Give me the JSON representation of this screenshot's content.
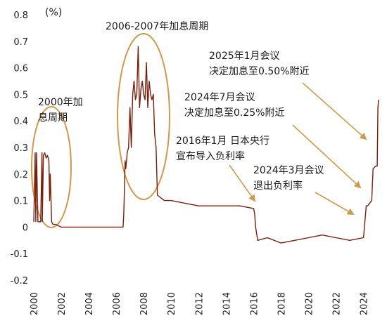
{
  "chart_data": {
    "type": "line",
    "title": "",
    "ylabel": "(%)",
    "xlabel": "",
    "ylim": [
      -0.2,
      0.8
    ],
    "xlim": [
      2000,
      2025.2
    ],
    "y_ticks": [
      "0.8",
      "0.7",
      "0.6",
      "0.5",
      "0.4",
      "0.3",
      "0.2",
      "0.1",
      "0",
      "-0.1",
      "-0.2"
    ],
    "x_ticks": [
      "2000",
      "2002",
      "2004",
      "2006",
      "2008",
      "2010",
      "2012",
      "2014",
      "2016",
      "2018",
      "2020",
      "2022",
      "2024"
    ],
    "line_color": "#7b1e0a",
    "annotation_color": "#d19a4a",
    "grid": false,
    "series": [
      {
        "x": [
          2000.0,
          2000.1,
          2000.15,
          2000.2,
          2000.3,
          2000.5,
          2000.6,
          2000.62,
          2000.7,
          2000.8,
          2000.85,
          2000.9,
          2001.0,
          2001.05,
          2001.1,
          2001.15,
          2001.2,
          2001.3,
          2001.4,
          2001.6,
          2002.0,
          2003.0,
          2004.0,
          2005.0,
          2006.0,
          2006.5,
          2006.55,
          2006.6,
          2006.65,
          2006.7,
          2006.8,
          2006.9,
          2007.0,
          2007.1,
          2007.2,
          2007.3,
          2007.4,
          2007.5,
          2007.6,
          2007.7,
          2007.8,
          2007.9,
          2008.0,
          2008.1,
          2008.2,
          2008.3,
          2008.4,
          2008.5,
          2008.6,
          2008.7,
          2008.8,
          2008.9,
          2009.0,
          2009.5,
          2010.0,
          2011.0,
          2012.0,
          2013.0,
          2014.0,
          2015.0,
          2016.0,
          2016.08,
          2016.15,
          2016.3,
          2017.0,
          2018.0,
          2019.0,
          2020.0,
          2021.0,
          2022.0,
          2023.0,
          2024.0,
          2024.2,
          2024.3,
          2024.6,
          2024.7,
          2024.9,
          2025.0,
          2025.05,
          2025.1
        ],
        "y": [
          0.02,
          0.28,
          0.02,
          0.28,
          0.02,
          0.02,
          0.28,
          0.02,
          0.27,
          0.28,
          0.27,
          0.26,
          0.27,
          0.26,
          0.25,
          0.1,
          0.2,
          0.02,
          0.01,
          0.01,
          0.0,
          0.0,
          0.0,
          0.0,
          0.0,
          0.0,
          0.05,
          0.15,
          0.25,
          0.22,
          0.28,
          0.3,
          0.45,
          0.3,
          0.5,
          0.55,
          0.48,
          0.5,
          0.68,
          0.45,
          0.52,
          0.55,
          0.5,
          0.48,
          0.62,
          0.45,
          0.55,
          0.5,
          0.48,
          0.5,
          0.35,
          0.3,
          0.12,
          0.1,
          0.1,
          0.09,
          0.08,
          0.08,
          0.08,
          0.08,
          0.07,
          0.05,
          0.0,
          -0.05,
          -0.04,
          -0.06,
          -0.05,
          -0.04,
          -0.03,
          -0.04,
          -0.05,
          -0.04,
          0.08,
          0.08,
          0.1,
          0.22,
          0.23,
          0.23,
          0.45,
          0.48
        ]
      }
    ],
    "annotations": [
      {
        "lines": [
          "2006-2007年加息周期"
        ]
      },
      {
        "lines": [
          "2025年1月会议",
          "决定加息至0.50%附近"
        ]
      },
      {
        "lines": [
          "2024年7月会议",
          "决定加息至0.25%附近"
        ]
      },
      {
        "lines": [
          "2000年加",
          "息周期"
        ]
      },
      {
        "lines": [
          "2016年1月 日本央行",
          "宣布导入负利率"
        ]
      },
      {
        "lines": [
          "2024年3月会议",
          "退出负利率"
        ]
      }
    ]
  }
}
